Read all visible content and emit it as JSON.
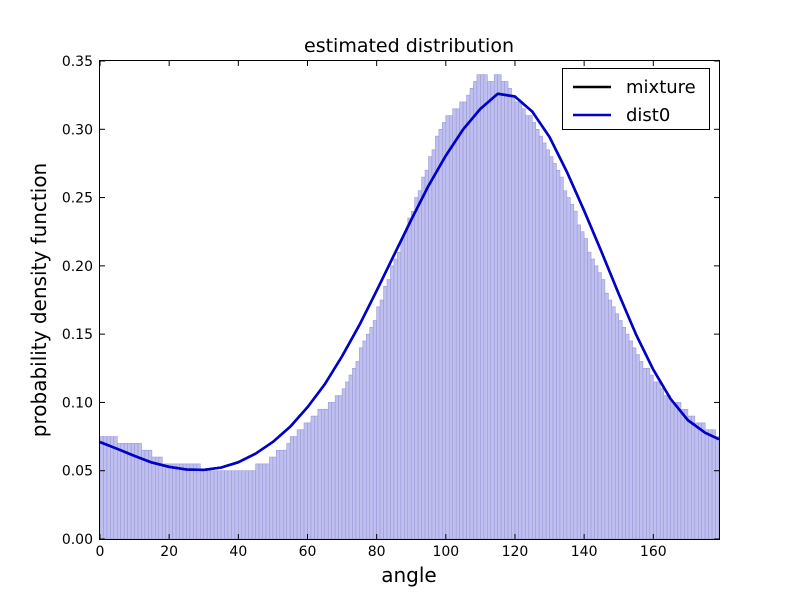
{
  "chart_data": {
    "type": "bar",
    "title": "estimated distribution",
    "xlabel": "angle",
    "ylabel": "probability density function",
    "xlim": [
      0,
      179
    ],
    "ylim": [
      0,
      0.35
    ],
    "xticks": [
      0,
      20,
      40,
      60,
      80,
      100,
      120,
      140,
      160
    ],
    "yticks": [
      0.0,
      0.05,
      0.1,
      0.15,
      0.2,
      0.25,
      0.3,
      0.35
    ],
    "xtick_labels": [
      "0",
      "20",
      "40",
      "60",
      "80",
      "100",
      "120",
      "140",
      "160"
    ],
    "ytick_labels": [
      "0.00",
      "0.05",
      "0.10",
      "0.15",
      "0.20",
      "0.25",
      "0.30",
      "0.35"
    ],
    "grid": false,
    "legend_position": "top-right",
    "histogram": {
      "bin_width": 1,
      "bin_start": 0,
      "color": "#bfbff0",
      "edge_color": "#9a9ad6",
      "values": [
        0.075,
        0.075,
        0.075,
        0.075,
        0.075,
        0.07,
        0.07,
        0.07,
        0.07,
        0.07,
        0.07,
        0.07,
        0.065,
        0.065,
        0.065,
        0.06,
        0.06,
        0.06,
        0.055,
        0.055,
        0.055,
        0.055,
        0.055,
        0.055,
        0.055,
        0.055,
        0.055,
        0.055,
        0.055,
        0.05,
        0.05,
        0.05,
        0.05,
        0.05,
        0.05,
        0.05,
        0.05,
        0.05,
        0.05,
        0.05,
        0.05,
        0.05,
        0.05,
        0.05,
        0.05,
        0.055,
        0.055,
        0.055,
        0.055,
        0.06,
        0.06,
        0.065,
        0.065,
        0.065,
        0.07,
        0.075,
        0.075,
        0.08,
        0.08,
        0.085,
        0.085,
        0.09,
        0.09,
        0.095,
        0.095,
        0.095,
        0.1,
        0.1,
        0.105,
        0.105,
        0.11,
        0.115,
        0.12,
        0.125,
        0.13,
        0.14,
        0.145,
        0.15,
        0.155,
        0.16,
        0.17,
        0.175,
        0.185,
        0.19,
        0.2,
        0.205,
        0.21,
        0.22,
        0.225,
        0.235,
        0.24,
        0.25,
        0.255,
        0.265,
        0.27,
        0.28,
        0.285,
        0.295,
        0.3,
        0.305,
        0.31,
        0.31,
        0.315,
        0.315,
        0.32,
        0.32,
        0.325,
        0.33,
        0.335,
        0.34,
        0.34,
        0.34,
        0.335,
        0.335,
        0.34,
        0.34,
        0.335,
        0.335,
        0.33,
        0.325,
        0.32,
        0.32,
        0.315,
        0.31,
        0.31,
        0.305,
        0.3,
        0.295,
        0.29,
        0.285,
        0.28,
        0.275,
        0.27,
        0.265,
        0.255,
        0.25,
        0.245,
        0.24,
        0.23,
        0.225,
        0.22,
        0.21,
        0.205,
        0.2,
        0.195,
        0.19,
        0.18,
        0.175,
        0.17,
        0.165,
        0.16,
        0.155,
        0.15,
        0.145,
        0.14,
        0.135,
        0.13,
        0.125,
        0.125,
        0.12,
        0.115,
        0.115,
        0.11,
        0.105,
        0.105,
        0.1,
        0.1,
        0.1,
        0.095,
        0.095,
        0.09,
        0.09,
        0.085,
        0.085,
        0.085,
        0.08,
        0.08,
        0.08,
        0.075
      ]
    },
    "series": [
      {
        "name": "mixture",
        "color": "#000000",
        "style": "line",
        "x": [
          0,
          5,
          10,
          15,
          20,
          25,
          30,
          35,
          40,
          45,
          50,
          55,
          60,
          65,
          70,
          75,
          80,
          85,
          90,
          95,
          100,
          105,
          110,
          115,
          120,
          125,
          130,
          135,
          140,
          145,
          150,
          155,
          160,
          165,
          170,
          175,
          179
        ],
        "y": [
          0.071,
          0.066,
          0.0608,
          0.056,
          0.0528,
          0.0509,
          0.0506,
          0.0523,
          0.0562,
          0.0625,
          0.0711,
          0.0822,
          0.0965,
          0.1133,
          0.1338,
          0.1566,
          0.1818,
          0.2078,
          0.2337,
          0.2587,
          0.2807,
          0.2999,
          0.315,
          0.326,
          0.324,
          0.313,
          0.2943,
          0.2689,
          0.2404,
          0.2104,
          0.1795,
          0.1498,
          0.124,
          0.1026,
          0.087,
          0.0778,
          0.073
        ]
      },
      {
        "name": "dist0",
        "color": "#0000d0",
        "style": "line",
        "x": [
          0,
          5,
          10,
          15,
          20,
          25,
          30,
          35,
          40,
          45,
          50,
          55,
          60,
          65,
          70,
          75,
          80,
          85,
          90,
          95,
          100,
          105,
          110,
          115,
          120,
          125,
          130,
          135,
          140,
          145,
          150,
          155,
          160,
          165,
          170,
          175,
          179
        ],
        "y": [
          0.071,
          0.066,
          0.0608,
          0.056,
          0.0528,
          0.0509,
          0.0506,
          0.0523,
          0.0562,
          0.0625,
          0.0711,
          0.0822,
          0.0965,
          0.1133,
          0.1338,
          0.1566,
          0.1818,
          0.2078,
          0.2337,
          0.2587,
          0.2807,
          0.2999,
          0.315,
          0.326,
          0.324,
          0.313,
          0.2943,
          0.2689,
          0.2404,
          0.2104,
          0.1795,
          0.1498,
          0.124,
          0.1026,
          0.087,
          0.0778,
          0.073
        ]
      }
    ]
  }
}
